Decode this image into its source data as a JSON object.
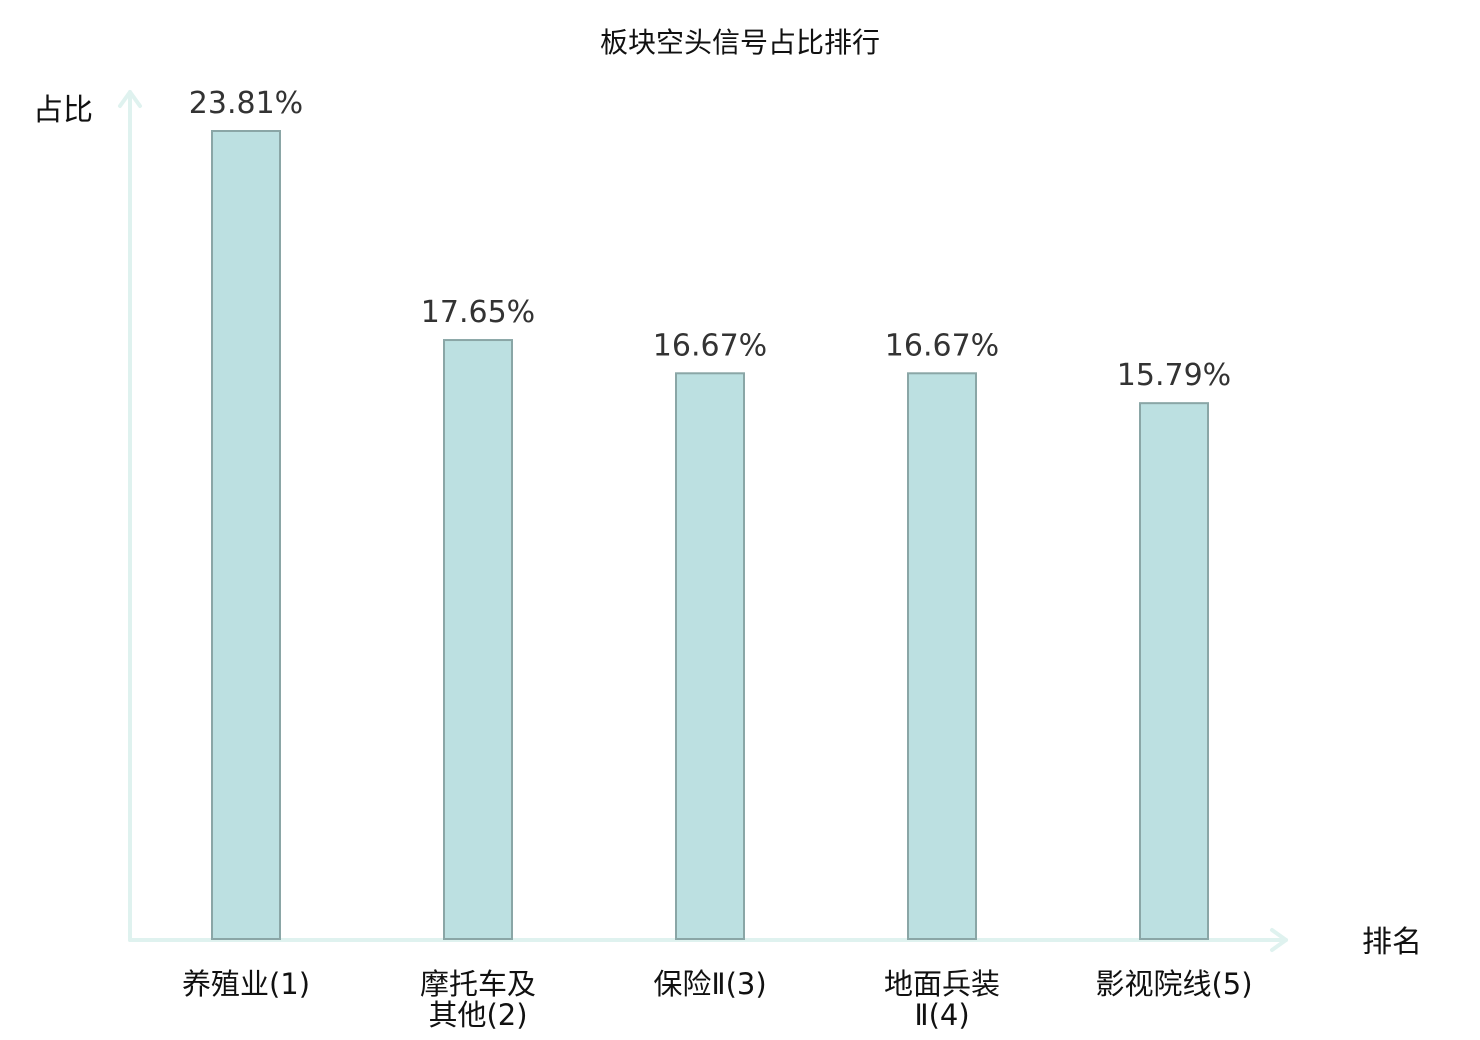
{
  "chart_data": {
    "type": "bar",
    "title": "板块空头信号占比排行",
    "ylabel": "占比",
    "xlabel": "排名",
    "categories": [
      [
        "养殖业(1)"
      ],
      [
        "摩托车及",
        "其他(2)"
      ],
      [
        "保险Ⅱ(3)"
      ],
      [
        "地面兵装",
        "Ⅱ(4)"
      ],
      [
        "影视院线(5)"
      ]
    ],
    "values": [
      23.81,
      17.65,
      16.67,
      16.67,
      15.79
    ],
    "value_labels": [
      "23.81%",
      "17.65%",
      "16.67%",
      "16.67%",
      "15.79%"
    ],
    "ylim": [
      0,
      25
    ],
    "grid": false,
    "colors": {
      "bar_fill": "#bce0e1",
      "bar_edge": "#8aa6a6",
      "axis": "#dff2ef",
      "highlight_label": "#e0201b",
      "default_label": "#111111"
    },
    "highlight_index": 4
  }
}
